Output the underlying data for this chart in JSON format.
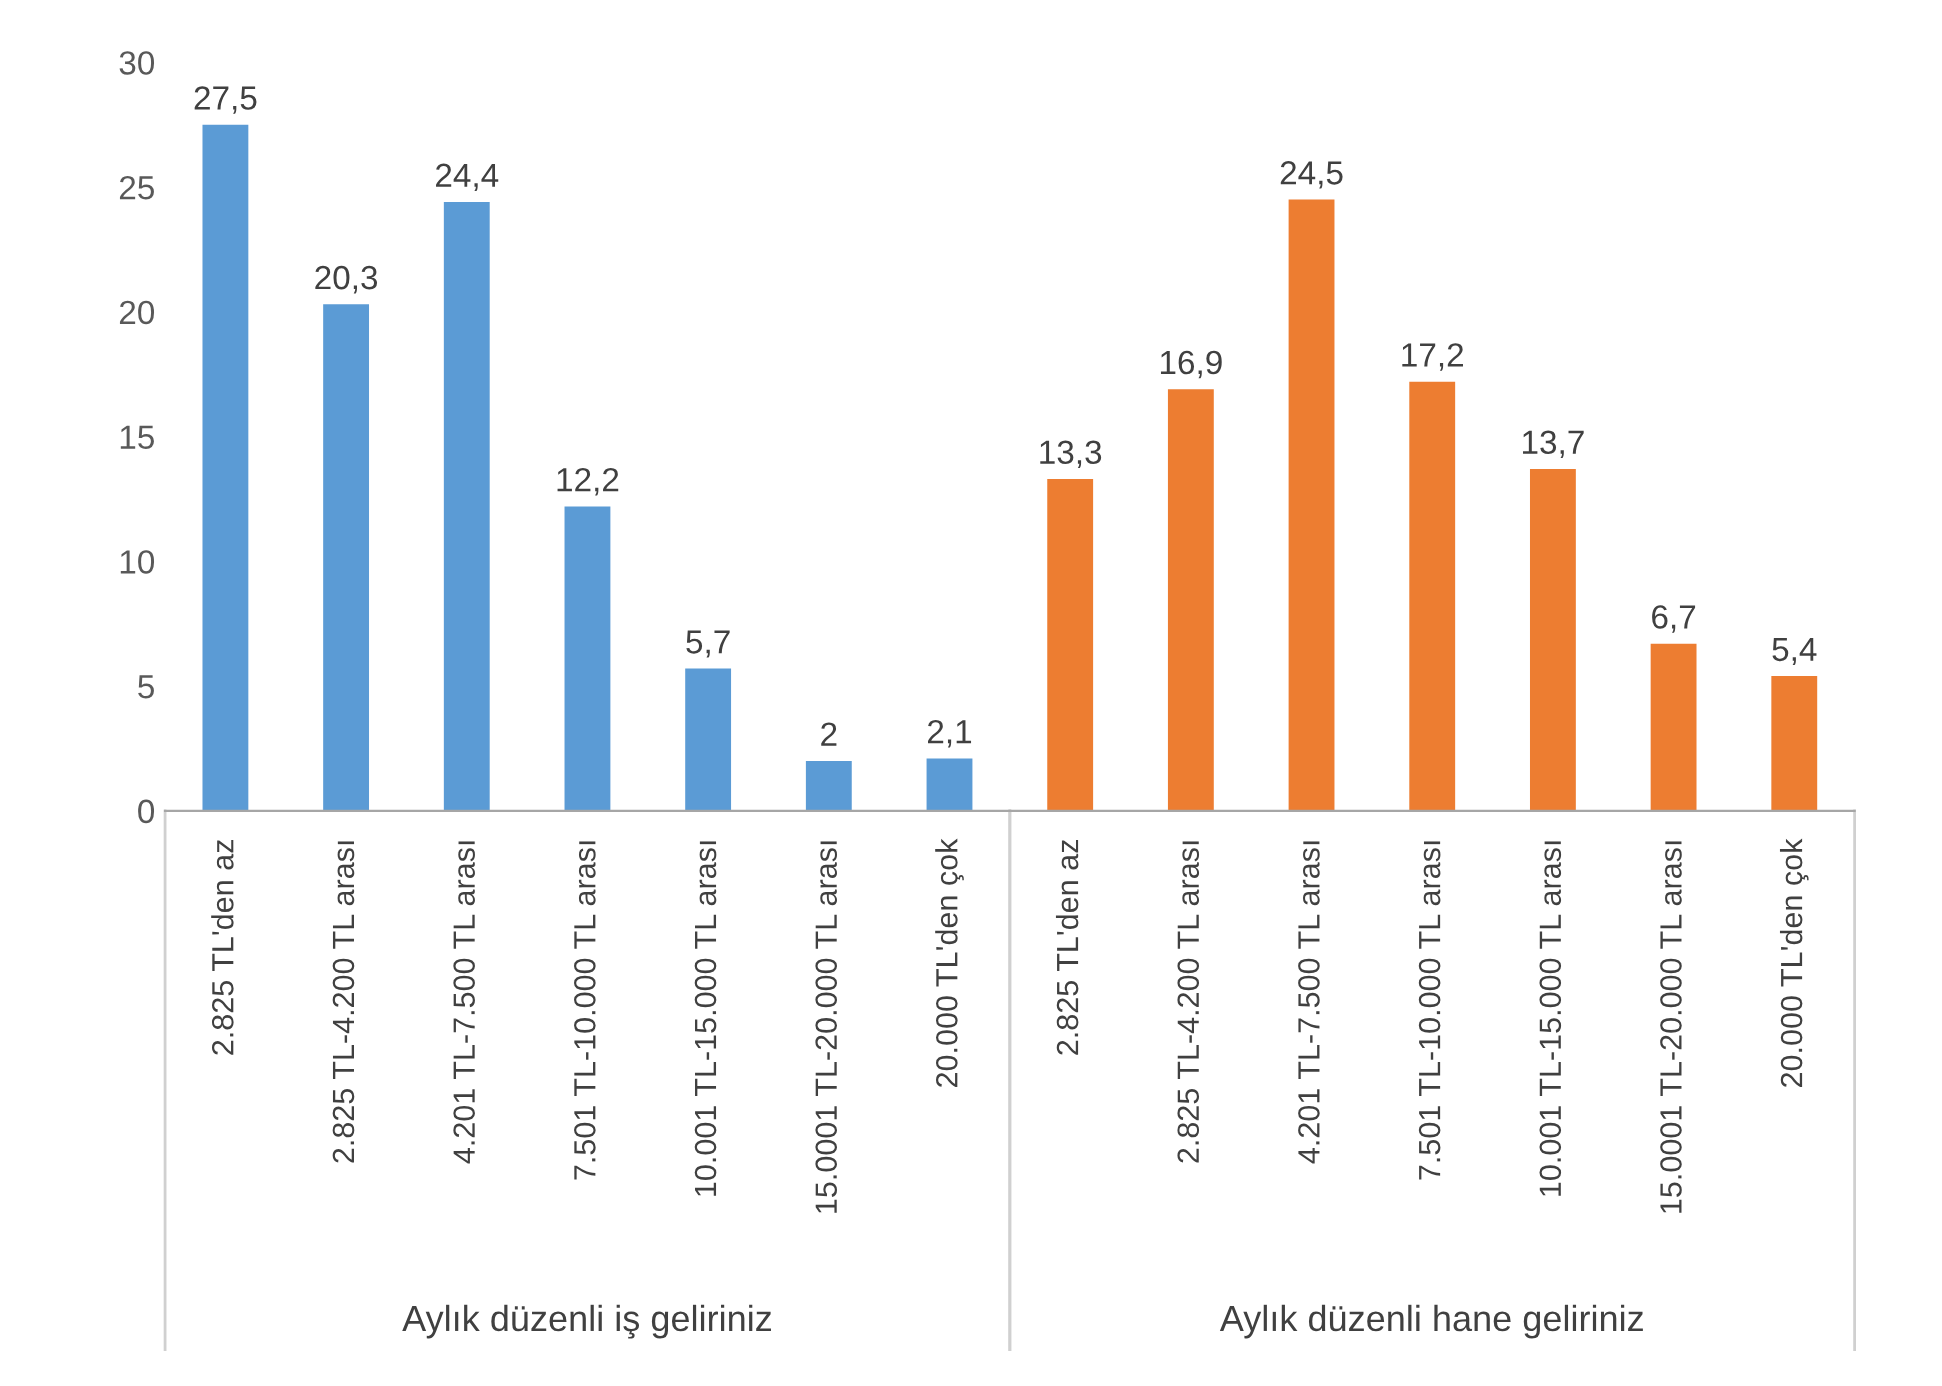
{
  "chart_data": {
    "type": "bar",
    "categories": [
      "2.825 TL'den az",
      "2.825 TL-4.200 TL arası",
      "4.201 TL-7.500 TL arası",
      "7.501 TL-10.000 TL arası",
      "10.001 TL-15.000 TL arası",
      "15.0001 TL-20.000 TL arası",
      "20.000 TL'den çok",
      "2.825 TL'den az",
      "2.825 TL-4.200 TL arası",
      "4.201 TL-7.500 TL arası",
      "7.501 TL-10.000 TL arası",
      "10.001 TL-15.000 TL arası",
      "15.0001 TL-20.000 TL arası",
      "20.000 TL'den çok"
    ],
    "values": [
      27.5,
      20.3,
      24.4,
      12.2,
      5.7,
      2,
      2.1,
      13.3,
      16.9,
      24.5,
      17.2,
      13.7,
      6.7,
      5.4
    ],
    "value_labels": [
      "27,5",
      "20,3",
      "24,4",
      "12,2",
      "5,7",
      "2",
      "2,1",
      "13,3",
      "16,9",
      "24,5",
      "17,2",
      "13,7",
      "6,7",
      "5,4"
    ],
    "colors": [
      "#5b9bd5",
      "#5b9bd5",
      "#5b9bd5",
      "#5b9bd5",
      "#5b9bd5",
      "#5b9bd5",
      "#5b9bd5",
      "#ed7d31",
      "#ed7d31",
      "#ed7d31",
      "#ed7d31",
      "#ed7d31",
      "#ed7d31",
      "#ed7d31"
    ],
    "annotations": [
      "Aylık düzenli iş geliriniz",
      "Aylık düzenli hane geliriniz"
    ],
    "ylim": [
      0,
      30
    ],
    "yticks": [
      0,
      5,
      10,
      15,
      20,
      25,
      30
    ],
    "grid": false,
    "legend": false
  }
}
